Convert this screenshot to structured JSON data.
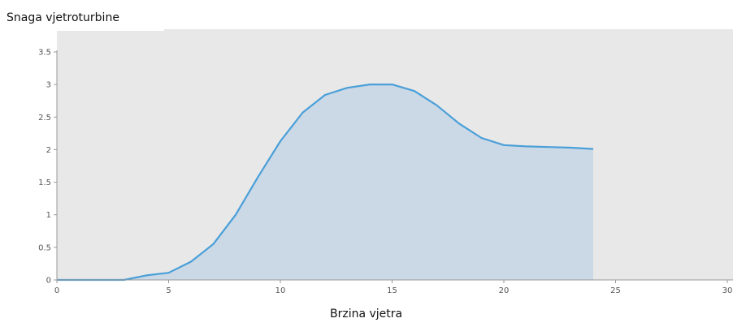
{
  "chart_data": {
    "type": "area",
    "title": "Snaga vjetroturbine",
    "xlabel": "Brzina vjetra",
    "ylabel": "",
    "xlim": [
      0,
      30
    ],
    "ylim": [
      0,
      3.5
    ],
    "x_ticks": [
      0,
      5,
      10,
      15,
      20,
      25,
      30
    ],
    "x_tick_labels": [
      "0",
      "5",
      "10",
      "15",
      "20",
      "25",
      "30"
    ],
    "y_ticks": [
      0,
      0.5,
      1,
      1.5,
      2,
      2.5,
      3,
      3.5
    ],
    "y_tick_labels": [
      "0",
      "0.5",
      "1",
      "1.5",
      "2",
      "2.5",
      "3",
      "3.5"
    ],
    "grid": false,
    "series": [
      {
        "x": [
          0,
          1,
          2,
          3,
          4,
          5,
          6,
          7,
          8,
          9,
          10,
          11,
          12,
          13,
          14,
          15,
          16,
          17,
          18,
          19,
          20,
          21,
          22,
          23,
          24
        ],
        "values": [
          0,
          0,
          0,
          0,
          0.07,
          0.11,
          0.28,
          0.55,
          1.0,
          1.58,
          2.13,
          2.57,
          2.84,
          2.95,
          3.0,
          3.0,
          2.9,
          2.68,
          2.4,
          2.18,
          2.07,
          2.05,
          2.04,
          2.03,
          2.01
        ]
      }
    ],
    "colors": {
      "line": "#4a9fd8",
      "fill": "#cbd9e6",
      "plot_background": "#e8e8e8",
      "axis": "#999999"
    }
  }
}
